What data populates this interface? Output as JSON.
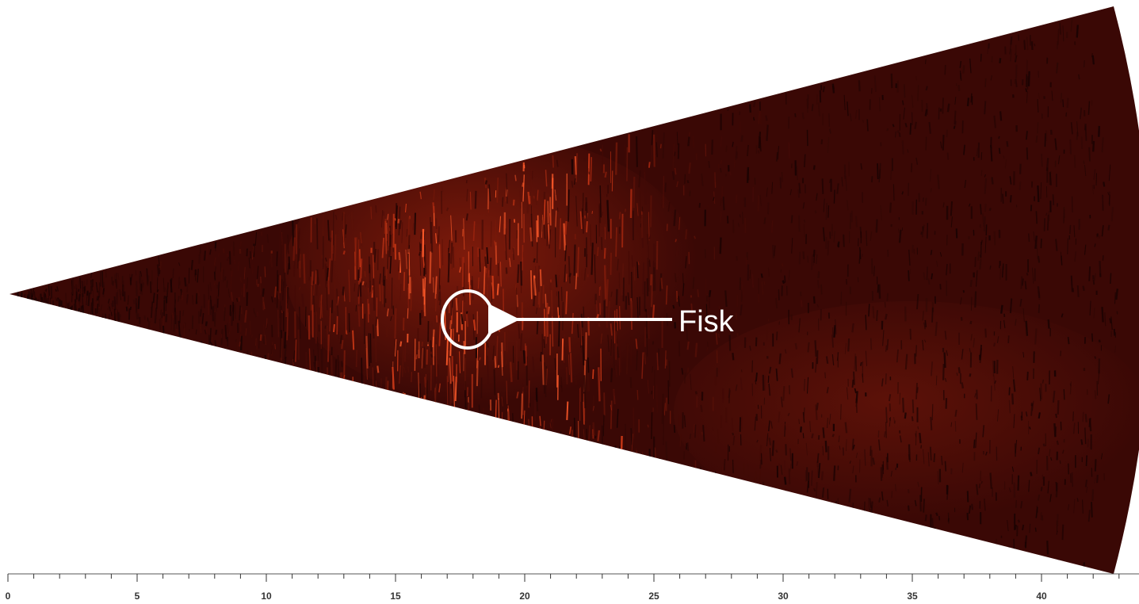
{
  "sonar": {
    "fan_palette": [
      "#000000",
      "#1a0303",
      "#2e0705",
      "#420a06",
      "#5a1108",
      "#7a1a0a",
      "#a3260f",
      "#d23a17",
      "#ff5a2a"
    ],
    "annotation": {
      "label": "Fisk",
      "color": "#ffffff"
    }
  },
  "scale": {
    "min": 0,
    "max": 44,
    "minor_step": 1,
    "labels": [
      "0",
      "5",
      "10",
      "15",
      "20",
      "25",
      "30",
      "35",
      "40"
    ],
    "color": "#333333"
  }
}
